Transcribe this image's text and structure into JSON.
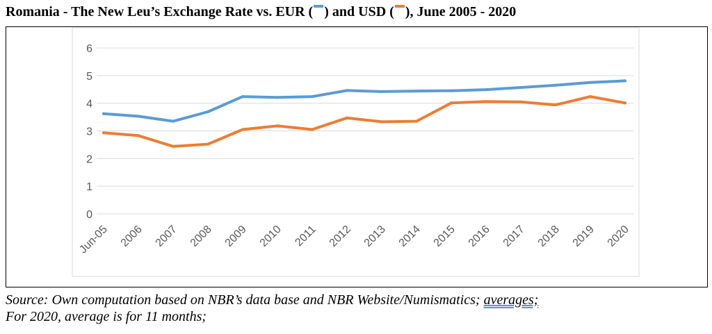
{
  "title": {
    "text_before_eur": "Romania - The New Leu’s Exchange Rate vs. EUR (",
    "text_between": ") and USD (",
    "text_after": "), June 2005 - 2020"
  },
  "source": {
    "line1_prefix": "Source: Own computation based on NBR’s data base and NBR Website/Numismatics; ",
    "line1_underlined": "averages;",
    "line2": "For 2020, average is for 11 months;"
  },
  "chart_data": {
    "type": "line",
    "categories": [
      "Jun-05",
      "2006",
      "2007",
      "2008",
      "2009",
      "2010",
      "2011",
      "2012",
      "2013",
      "2014",
      "2015",
      "2016",
      "2017",
      "2018",
      "2019",
      "2020"
    ],
    "series": [
      {
        "values": [
          3.62,
          3.53,
          3.35,
          3.69,
          4.24,
          4.21,
          4.24,
          4.46,
          4.42,
          4.44,
          4.45,
          4.49,
          4.57,
          4.65,
          4.75,
          4.81
        ],
        "color": "#5b9bd5"
      },
      {
        "values": [
          2.93,
          2.83,
          2.44,
          2.52,
          3.05,
          3.18,
          3.05,
          3.47,
          3.33,
          3.35,
          4.01,
          4.06,
          4.05,
          3.94,
          4.24,
          4.01
        ],
        "color": "#ed7d31"
      }
    ],
    "yticks": [
      0,
      1,
      2,
      3,
      4,
      5,
      6
    ],
    "ylim": [
      0,
      6
    ],
    "grid": true,
    "legend": "none"
  }
}
